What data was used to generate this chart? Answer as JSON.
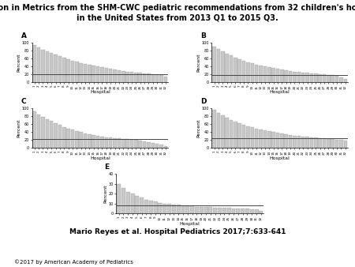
{
  "title": "Variation in Metrics from the SHM-CWC pediatric recommendations from 32 children's hospitals\nin the United States from 2013 Q1 to 2015 Q3.",
  "citation": "Mario Reyes et al. Hospital Pediatrics 2017;7:633-641",
  "copyright": "©2017 by American Academy of Pediatrics",
  "n_hospitals": 32,
  "subplots": [
    {
      "label": "A",
      "ylabel": "Percent",
      "xlabel": "Hospital",
      "ylim": [
        0,
        100
      ],
      "yticks": [
        0,
        20,
        40,
        60,
        80,
        100
      ],
      "ref_line": 20,
      "values": [
        95,
        88,
        82,
        78,
        74,
        70,
        66,
        62,
        58,
        55,
        52,
        49,
        46,
        44,
        42,
        40,
        38,
        36,
        34,
        32,
        30,
        28,
        27,
        26,
        25,
        24,
        23,
        22,
        21,
        20,
        18,
        15
      ]
    },
    {
      "label": "B",
      "ylabel": "Percent",
      "xlabel": "Hospital",
      "ylim": [
        0,
        100
      ],
      "yticks": [
        0,
        20,
        40,
        60,
        80,
        100
      ],
      "ref_line": 18,
      "values": [
        90,
        84,
        78,
        73,
        68,
        63,
        59,
        55,
        51,
        48,
        45,
        42,
        40,
        38,
        36,
        34,
        32,
        30,
        28,
        27,
        26,
        25,
        24,
        23,
        22,
        21,
        20,
        19,
        18,
        17,
        12,
        8
      ]
    },
    {
      "label": "C",
      "ylabel": "Percent",
      "xlabel": "Hospital",
      "ylim": [
        0,
        100
      ],
      "yticks": [
        0,
        20,
        40,
        60,
        80,
        100
      ],
      "ref_line": 22,
      "values": [
        92,
        85,
        79,
        73,
        68,
        63,
        58,
        53,
        49,
        46,
        43,
        40,
        37,
        35,
        33,
        31,
        29,
        27,
        26,
        25,
        24,
        23,
        22,
        21,
        20,
        18,
        16,
        14,
        12,
        10,
        8,
        5
      ]
    },
    {
      "label": "D",
      "ylabel": "Percent",
      "xlabel": "Hospital",
      "ylim": [
        0,
        100
      ],
      "yticks": [
        0,
        20,
        40,
        60,
        80,
        100
      ],
      "ref_line": 25,
      "values": [
        96,
        88,
        82,
        76,
        71,
        67,
        63,
        59,
        55,
        52,
        49,
        46,
        44,
        42,
        40,
        38,
        36,
        34,
        32,
        31,
        30,
        29,
        28,
        27,
        26,
        25,
        24,
        23,
        22,
        21,
        20,
        18
      ]
    },
    {
      "label": "E",
      "ylabel": "Percent",
      "xlabel": "Hospital",
      "ylim": [
        0,
        40
      ],
      "yticks": [
        0,
        10,
        20,
        30,
        40
      ],
      "ref_line": 8,
      "values": [
        30,
        26,
        22,
        20,
        18,
        16,
        14,
        13,
        12,
        11,
        10,
        10,
        9,
        9,
        8,
        8,
        8,
        7,
        7,
        7,
        7,
        6,
        6,
        6,
        6,
        5,
        5,
        5,
        5,
        4,
        4,
        3
      ]
    }
  ],
  "bar_color": "#c8c8c8",
  "bar_edge_color": "#999999",
  "ref_line_color": "#444444",
  "background_color": "#ffffff",
  "title_fontsize": 7.0,
  "subplot_label_fontsize": 6.5,
  "ylabel_fontsize": 4.5,
  "xlabel_fontsize": 4.5,
  "tick_fontsize": 3.5,
  "citation_fontsize": 6.5,
  "copyright_fontsize": 5.0
}
